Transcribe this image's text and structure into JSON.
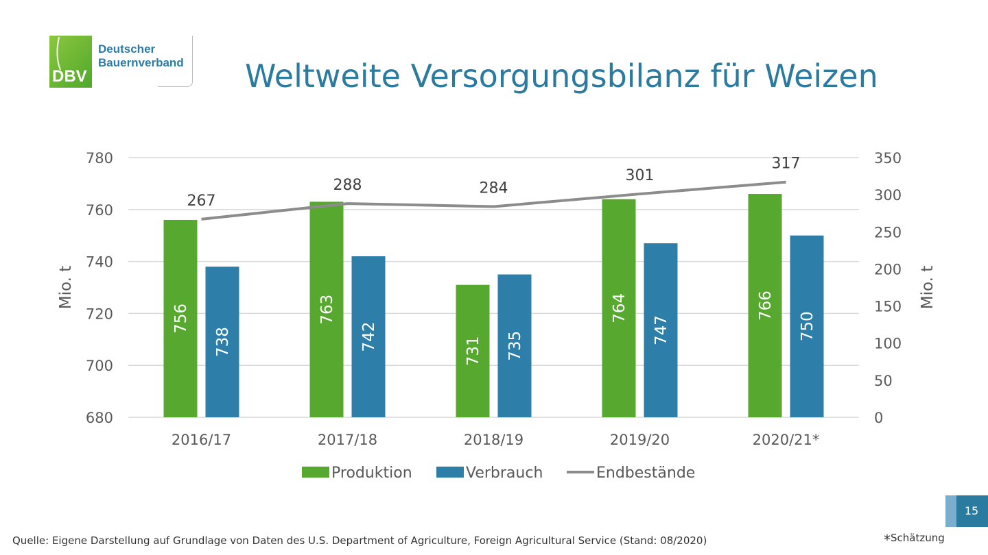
{
  "logo": {
    "mark": "DBV",
    "line1": "Deutscher",
    "line2": "Bauernverband"
  },
  "title": "Weltweite Versorgungsbilanz für Weizen",
  "page_number": "15",
  "source": "Quelle: Eigene Darstellung auf Grundlage von Daten des U.S. Department of Agriculture, Foreign Agricultural Service (Stand: 08/2020)",
  "footnote": {
    "symbol": "*",
    "text": "Schätzung"
  },
  "colors": {
    "produktion": "#56a82e",
    "verbrauch": "#2d7faa",
    "endbestaende": "#8c8c8c",
    "title": "#2b7a9f"
  },
  "chart_data": {
    "type": "bar",
    "categories": [
      "2016/17",
      "2017/18",
      "2018/19",
      "2019/20",
      "2020/21*"
    ],
    "series": [
      {
        "name": "Produktion",
        "type": "bar",
        "axis": "left",
        "values": [
          756,
          763,
          731,
          764,
          766
        ]
      },
      {
        "name": "Verbrauch",
        "type": "bar",
        "axis": "left",
        "values": [
          738,
          742,
          735,
          747,
          750
        ]
      },
      {
        "name": "Endbestände",
        "type": "line",
        "axis": "right",
        "values": [
          267,
          288,
          284,
          301,
          317
        ]
      }
    ],
    "ylabel": "Mio. t",
    "y2label": "Mio. t",
    "ylim": [
      680,
      780
    ],
    "yticks": [
      680,
      700,
      720,
      740,
      760,
      780
    ],
    "y2lim": [
      0,
      350
    ],
    "y2ticks": [
      0,
      50,
      100,
      150,
      200,
      250,
      300,
      350
    ],
    "grid": true,
    "legend": "bottom"
  }
}
